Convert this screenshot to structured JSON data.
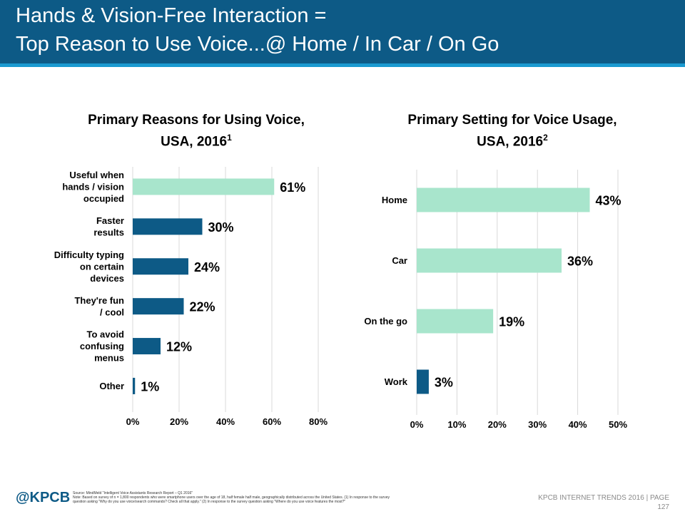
{
  "header": {
    "title_line1": "Hands & Vision-Free Interaction =",
    "title_line2": "Top Reason to Use Voice...@ Home / In Car / On Go"
  },
  "colors": {
    "header_bg": "#0d5a86",
    "header_stripe": "#1a9ad0",
    "bar_dark": "#0d5a86",
    "bar_light": "#a8e5cc",
    "grid": "#d9d9d9"
  },
  "chart_data": [
    {
      "type": "bar",
      "orientation": "horizontal",
      "title_line1": "Primary Reasons for Using Voice,",
      "title_line2": "USA, 2016",
      "title_sup": "1",
      "categories": [
        [
          "Useful when",
          "hands / vision",
          "occupied"
        ],
        [
          "Faster",
          "results"
        ],
        [
          "Difficulty typing",
          "on certain",
          "devices"
        ],
        [
          "They're fun",
          "/ cool"
        ],
        [
          "To avoid",
          "confusing",
          "menus"
        ],
        [
          "Other"
        ]
      ],
      "values": [
        61,
        30,
        24,
        22,
        12,
        1
      ],
      "data_labels": [
        "61%",
        "30%",
        "24%",
        "22%",
        "12%",
        "1%"
      ],
      "highlight": [
        true,
        false,
        false,
        false,
        false,
        false
      ],
      "xlim": [
        0,
        80
      ],
      "ticks": [
        0,
        20,
        40,
        60,
        80
      ],
      "tick_labels": [
        "0%",
        "20%",
        "40%",
        "60%",
        "80%"
      ],
      "grid": true
    },
    {
      "type": "bar",
      "orientation": "horizontal",
      "title_line1": "Primary Setting for Voice Usage,",
      "title_line2": "USA, 2016",
      "title_sup": "2",
      "categories": [
        [
          "Home"
        ],
        [
          "Car"
        ],
        [
          "On the go"
        ],
        [
          "Work"
        ]
      ],
      "values": [
        43,
        36,
        19,
        3
      ],
      "data_labels": [
        "43%",
        "36%",
        "19%",
        "3%"
      ],
      "highlight": [
        true,
        true,
        true,
        false
      ],
      "xlim": [
        0,
        50
      ],
      "ticks": [
        0,
        10,
        20,
        30,
        40,
        50
      ],
      "tick_labels": [
        "0%",
        "10%",
        "20%",
        "30%",
        "40%",
        "50%"
      ],
      "grid": true
    }
  ],
  "footer": {
    "logo": "@KPCB",
    "source_line1": "Source: MindMeld \"Intelligent Voice Assistants Research Report – Q1 2016\"",
    "source_line2": "Note: Based on survey of n = 1,800 respondents who were smartphone users over the age of 18, half female half male, geographically distributed across the United States. (1) In response to the survey",
    "source_line3": "question asking \"Why do you use voice/search commands? Check all that apply.\" (2) In response to the survey question asking \"Where do you use voice features the most?\"",
    "right_line1": "KPCB INTERNET TRENDS 2016  |  PAGE",
    "page_number": "127"
  }
}
